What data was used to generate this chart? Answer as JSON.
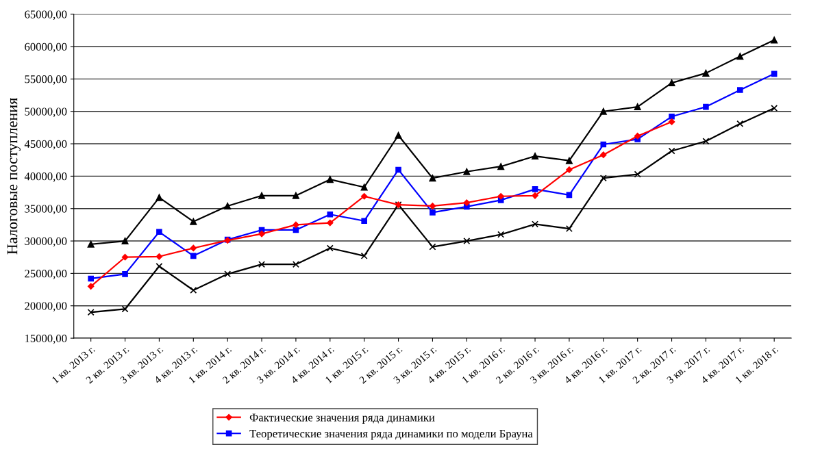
{
  "chart_data": {
    "type": "line",
    "ylabel": "Налоговые поступления",
    "categories": [
      "1 кв. 2013 г.",
      "2 кв. 2013 г.",
      "3 кв. 2013 г.",
      "4 кв. 2013 г.",
      "1 кв. 2014 г.",
      "2 кв. 2014 г.",
      "3 кв. 2014 г.",
      "4 кв. 2014 г.",
      "1 кв. 2015 г.",
      "2 кв. 2015 г.",
      "3 кв. 2015 г.",
      "4 кв. 2015 г.",
      "1 кв. 2016 г.",
      "2 кв. 2016 г.",
      "3 кв. 2016 г.",
      "4 кв. 2016 г.",
      "1 кв. 2017 г.",
      "2 кв. 2017 г.",
      "3 кв. 2017 г.",
      "4 кв. 2017 г.",
      "1 кв. 2018 г."
    ],
    "series": [
      {
        "name": "Фактические значения ряда динамики",
        "color": "#ff0000",
        "marker": "diamond",
        "values": [
          23000,
          27500,
          27600,
          28900,
          30100,
          31100,
          32500,
          32800,
          36900,
          35600,
          35400,
          35900,
          36900,
          37000,
          41000,
          43300,
          46200,
          48400,
          null,
          null,
          null
        ]
      },
      {
        "name": "Теоретические значения ряда динамики по модели Брауна",
        "color": "#0000ff",
        "marker": "square",
        "values": [
          24200,
          24900,
          31400,
          27700,
          30200,
          31700,
          31700,
          34100,
          33100,
          41000,
          34400,
          35300,
          36300,
          38000,
          37100,
          44900,
          45700,
          49200,
          50700,
          53300,
          55800
        ]
      },
      {
        "color": "#000000",
        "marker": "triangle",
        "values": [
          29500,
          30000,
          36700,
          33000,
          35400,
          37000,
          37000,
          39500,
          38300,
          46300,
          39700,
          40700,
          41500,
          43100,
          42400,
          50000,
          50700,
          54400,
          55900,
          58500,
          61000
        ]
      },
      {
        "color": "#000000",
        "marker": "cross",
        "values": [
          19000,
          19500,
          26100,
          22400,
          24900,
          26400,
          26400,
          28900,
          27700,
          35600,
          29100,
          30000,
          31000,
          32600,
          31900,
          39700,
          40300,
          43900,
          45400,
          48100,
          50500
        ]
      }
    ],
    "ylim": [
      15000,
      65000
    ],
    "yticks": [
      {
        "value": 15000,
        "label": "15000,00"
      },
      {
        "value": 20000,
        "label": "20000,00"
      },
      {
        "value": 25000,
        "label": "25000,00"
      },
      {
        "value": 30000,
        "label": "30000,00"
      },
      {
        "value": 35000,
        "label": "35000,00"
      },
      {
        "value": 40000,
        "label": "40000,00"
      },
      {
        "value": 45000,
        "label": "45000,00"
      },
      {
        "value": 50000,
        "label": "50000,00"
      },
      {
        "value": 55000,
        "label": "55000,00"
      },
      {
        "value": 60000,
        "label": "60000,00"
      },
      {
        "value": 65000,
        "label": "65000,00"
      }
    ],
    "grid": "y",
    "legend": "bottom",
    "line_style": "solid"
  }
}
